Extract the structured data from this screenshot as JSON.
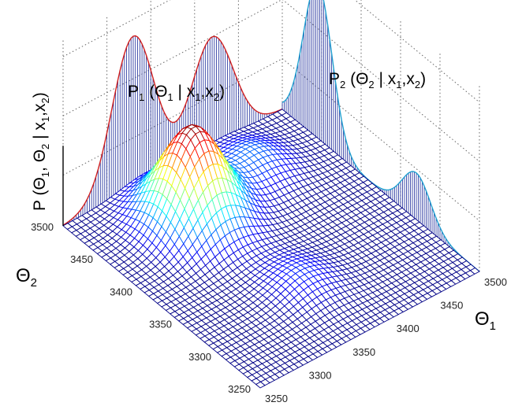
{
  "chart_data": {
    "type": "surface",
    "grid": true,
    "z_label": {
      "main": "P (Θ",
      "s1": "1",
      "mid": ", Θ",
      "s2": "2",
      "bar": " | x",
      "s3": "1",
      "comma": ",x",
      "s4": "2",
      "end": ")"
    },
    "x_label": {
      "main": "Θ",
      "sub": "1"
    },
    "y_label": {
      "main": "Θ",
      "sub": "2"
    },
    "marginal_labels": [
      {
        "name": "marginal-p1",
        "pre": "P",
        "s1": "1",
        "mid": " (Θ",
        "s2": "1",
        "bar": " | x",
        "s3": "1",
        "comma": ",x",
        "s4": "2",
        "end": ")"
      },
      {
        "name": "marginal-p2",
        "pre": "P",
        "s1": "2",
        "mid": " (Θ",
        "s2": "2",
        "bar": " | x",
        "s3": "1",
        "comma": ",x",
        "s4": "2",
        "end": ")"
      }
    ],
    "x_ticks": [
      "3250",
      "3300",
      "3350",
      "3400",
      "3450",
      "3500"
    ],
    "y_ticks": [
      "3250",
      "3300",
      "3350",
      "3400",
      "3450",
      "3500"
    ],
    "x_range": [
      3250,
      3500
    ],
    "y_range": [
      3250,
      3500
    ],
    "peaks": [
      {
        "theta1": 3345,
        "theta2": 3440,
        "height": 1.0
      },
      {
        "theta1": 3430,
        "theta2": 3455,
        "height": 0.22
      },
      {
        "theta1": 3365,
        "theta2": 3325,
        "height": 0.16
      }
    ],
    "marginal_theta1": {
      "peaks": [
        3330,
        3420
      ],
      "heights": [
        1.0,
        0.72
      ]
    },
    "marginal_theta2": {
      "peaks": [
        3330,
        3455
      ],
      "heights": [
        0.3,
        1.0
      ]
    },
    "colormap": [
      "#00008f",
      "#0000ff",
      "#00ffff",
      "#ffff00",
      "#ff0000",
      "#800000"
    ]
  }
}
